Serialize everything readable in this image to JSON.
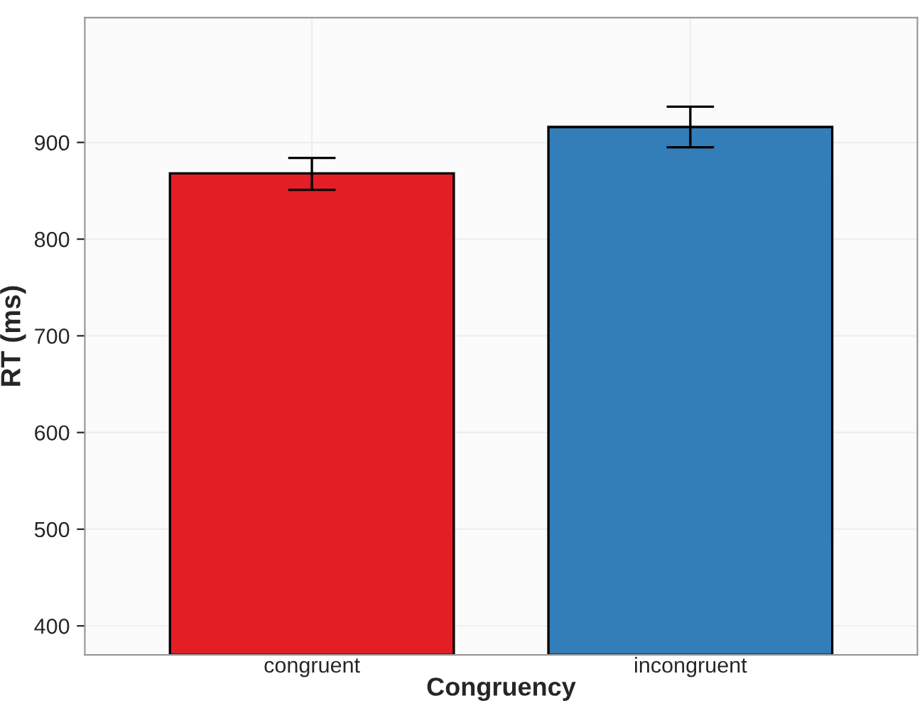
{
  "chart_data": {
    "type": "bar",
    "xlabel": "Congruency",
    "ylabel": "RT (ms)",
    "categories": [
      "congruent",
      "incongruent"
    ],
    "values": [
      868,
      916
    ],
    "colors": [
      "#e31e24",
      "#337db8"
    ],
    "errors": [
      [
        851,
        884
      ],
      [
        895,
        937
      ]
    ],
    "ylim": [
      370,
      1029
    ],
    "yticks": [
      400,
      500,
      600,
      700,
      800,
      900
    ],
    "grid": true
  }
}
